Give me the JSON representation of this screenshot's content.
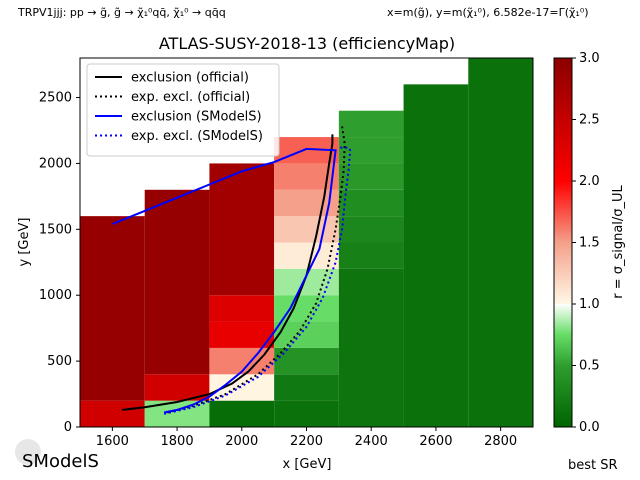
{
  "header": {
    "left": "TRPV1jjj: pp → g̃, g̃ → χ̃₁⁰qq̄, χ̃₁⁰ → qq̄q",
    "right": "x=m(g̃), y=m(χ̃₁⁰), 6.582e-17=Γ(χ̃₁⁰)"
  },
  "footer": {
    "logo_text": "SModelS",
    "best_sr": "best SR"
  },
  "chart_data": {
    "type": "heatmap",
    "title": "ATLAS-SUSY-2018-13 (efficiencyMap)",
    "xlabel": "x [GeV]",
    "ylabel": "y [GeV]",
    "colorbar_label": "r = σ_signal/σ_UL",
    "xlim": [
      1500,
      2900
    ],
    "ylim": [
      0,
      2800
    ],
    "xticks": [
      1600,
      1800,
      2000,
      2200,
      2400,
      2600,
      2800
    ],
    "yticks": [
      0,
      500,
      1000,
      1500,
      2000,
      2500
    ],
    "colorbar": {
      "min": 0.0,
      "max": 3.0,
      "ticks": [
        0.0,
        0.5,
        1.0,
        1.5,
        2.0,
        2.5,
        3.0
      ]
    },
    "cells": [
      {
        "x0": 1500,
        "x1": 1700,
        "y0": 0,
        "y1": 200,
        "r": 2.4
      },
      {
        "x0": 1500,
        "x1": 1700,
        "y0": 200,
        "y1": 1600,
        "r": 2.9
      },
      {
        "x0": 1700,
        "x1": 1900,
        "y0": 0,
        "y1": 200,
        "r": 0.8
      },
      {
        "x0": 1700,
        "x1": 1900,
        "y0": 200,
        "y1": 400,
        "r": 2.4
      },
      {
        "x0": 1700,
        "x1": 1900,
        "y0": 400,
        "y1": 1800,
        "r": 2.9
      },
      {
        "x0": 1900,
        "x1": 2100,
        "y0": 0,
        "y1": 200,
        "r": 0.08
      },
      {
        "x0": 1900,
        "x1": 2100,
        "y0": 200,
        "y1": 400,
        "r": 1.05
      },
      {
        "x0": 1900,
        "x1": 2100,
        "y0": 400,
        "y1": 600,
        "r": 1.6
      },
      {
        "x0": 1900,
        "x1": 2100,
        "y0": 600,
        "y1": 800,
        "r": 2.2
      },
      {
        "x0": 1900,
        "x1": 2100,
        "y0": 800,
        "y1": 1000,
        "r": 2.3
      },
      {
        "x0": 1900,
        "x1": 2100,
        "y0": 1000,
        "y1": 2000,
        "r": 2.8
      },
      {
        "x0": 2100,
        "x1": 2300,
        "y0": 0,
        "y1": 200,
        "r": 0.12
      },
      {
        "x0": 2100,
        "x1": 2300,
        "y0": 200,
        "y1": 400,
        "r": 0.18
      },
      {
        "x0": 2100,
        "x1": 2300,
        "y0": 400,
        "y1": 600,
        "r": 0.4
      },
      {
        "x0": 2100,
        "x1": 2300,
        "y0": 600,
        "y1": 800,
        "r": 0.7
      },
      {
        "x0": 2100,
        "x1": 2300,
        "y0": 800,
        "y1": 1000,
        "r": 0.75
      },
      {
        "x0": 2100,
        "x1": 2300,
        "y0": 1000,
        "y1": 1200,
        "r": 0.85
      },
      {
        "x0": 2100,
        "x1": 2300,
        "y0": 1200,
        "y1": 1400,
        "r": 1.1
      },
      {
        "x0": 2100,
        "x1": 2300,
        "y0": 1400,
        "y1": 1600,
        "r": 1.3
      },
      {
        "x0": 2100,
        "x1": 2300,
        "y0": 1600,
        "y1": 1800,
        "r": 1.5
      },
      {
        "x0": 2100,
        "x1": 2300,
        "y0": 1800,
        "y1": 2000,
        "r": 1.6
      },
      {
        "x0": 2100,
        "x1": 2300,
        "y0": 2000,
        "y1": 2200,
        "r": 1.7
      },
      {
        "x0": 2300,
        "x1": 2500,
        "y0": 0,
        "y1": 1200,
        "r": 0.15
      },
      {
        "x0": 2300,
        "x1": 2500,
        "y0": 1200,
        "y1": 1400,
        "r": 0.25
      },
      {
        "x0": 2300,
        "x1": 2500,
        "y0": 1400,
        "y1": 1600,
        "r": 0.3
      },
      {
        "x0": 2300,
        "x1": 2500,
        "y0": 1600,
        "y1": 1800,
        "r": 0.35
      },
      {
        "x0": 2300,
        "x1": 2500,
        "y0": 1800,
        "y1": 2000,
        "r": 0.45
      },
      {
        "x0": 2300,
        "x1": 2500,
        "y0": 2000,
        "y1": 2200,
        "r": 0.5
      },
      {
        "x0": 2300,
        "x1": 2500,
        "y0": 2200,
        "y1": 2400,
        "r": 0.5
      },
      {
        "x0": 2500,
        "x1": 2700,
        "y0": 0,
        "y1": 2600,
        "r": 0.12
      },
      {
        "x0": 2700,
        "x1": 2900,
        "y0": 0,
        "y1": 2800,
        "r": 0.12
      }
    ],
    "series": [
      {
        "name": "exclusion (official)",
        "color": "#000000",
        "style": "solid",
        "x": [
          1630,
          1700,
          1800,
          1900,
          1970,
          2020,
          2070,
          2120,
          2160,
          2200,
          2230,
          2255,
          2270,
          2280,
          2280
        ],
        "y": [
          130,
          150,
          190,
          250,
          330,
          420,
          550,
          720,
          900,
          1150,
          1450,
          1750,
          2000,
          2150,
          2220
        ]
      },
      {
        "name": "exp. excl. (official)",
        "color": "#000000",
        "style": "dotted",
        "x": [
          1770,
          1850,
          1950,
          2050,
          2120,
          2180,
          2230,
          2265,
          2290,
          2305,
          2315,
          2318,
          2310
        ],
        "y": [
          110,
          160,
          250,
          400,
          560,
          730,
          940,
          1200,
          1500,
          1750,
          1950,
          2150,
          2280
        ]
      },
      {
        "name": "exclusion (SModelS)",
        "color": "#0000ff",
        "style": "solid",
        "x": [
          1600,
          1700,
          1800,
          1900,
          2000,
          2100,
          2200,
          2290,
          2280,
          2270,
          2240,
          2200,
          2150,
          2100,
          2050,
          2000,
          1950,
          1900,
          1850,
          1800,
          1760
        ],
        "y": [
          1540,
          1640,
          1740,
          1840,
          1940,
          2010,
          2110,
          2100,
          1900,
          1700,
          1350,
          1150,
          900,
          720,
          560,
          420,
          320,
          230,
          170,
          130,
          110
        ]
      },
      {
        "name": "exp. excl. (SModelS)",
        "color": "#0000ff",
        "style": "dotted",
        "x": [
          1760,
          1850,
          1950,
          2050,
          2130,
          2200,
          2250,
          2290,
          2310,
          2320,
          2330,
          2335,
          2330,
          2300
        ],
        "y": [
          100,
          150,
          240,
          380,
          560,
          760,
          980,
          1250,
          1500,
          1750,
          1950,
          2100,
          2120,
          2120
        ]
      }
    ],
    "legend_position": "upper-left"
  }
}
